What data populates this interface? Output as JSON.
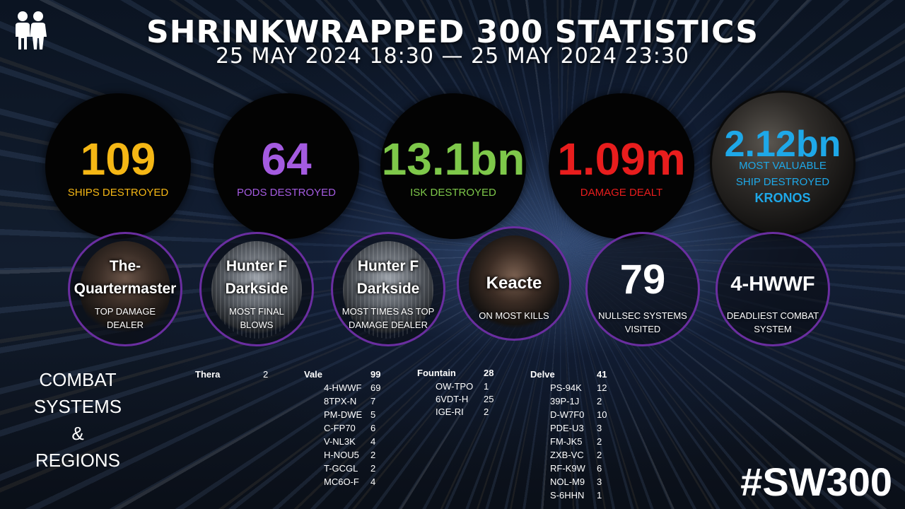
{
  "header": {
    "title": "SHRINKWRAPPED 300 STATISTICS",
    "subtitle": "25 MAY 2024 18:30 — 25 MAY 2024 23:30"
  },
  "stats": [
    {
      "value": "109",
      "label": "SHIPS DESTROYED",
      "color": "#f5b715"
    },
    {
      "value": "64",
      "label": "PODS DESTROYED",
      "color": "#a45be0"
    },
    {
      "value": "13.1bn",
      "label": "ISK DESTROYED",
      "color": "#7ec84a"
    },
    {
      "value": "1.09m",
      "label": "DAMAGE DEALT",
      "color": "#e81d1d"
    }
  ],
  "most_valuable": {
    "value": "2.12bn",
    "label_line1": "MOST VALUABLE",
    "label_line2": "SHIP DESTROYED",
    "ship": "KRONOS",
    "color": "#1ea8e8"
  },
  "awards": [
    {
      "name_line1": "The-",
      "name_line2": "Quartermaster",
      "label_line1": "TOP DAMAGE",
      "label_line2": "DEALER"
    },
    {
      "name_line1": "Hunter F",
      "name_line2": "Darkside",
      "label_line1": "MOST FINAL",
      "label_line2": "BLOWS"
    },
    {
      "name_line1": "Hunter F",
      "name_line2": "Darkside",
      "label_line1": "MOST TIMES AS TOP",
      "label_line2": "DAMAGE DEALER"
    },
    {
      "name_line1": "Keacte",
      "label_line1": "ON MOST KILLS"
    }
  ],
  "nullsec": {
    "value": "79",
    "label_line1": "NULLSEC SYSTEMS",
    "label_line2": "VISITED"
  },
  "deadliest": {
    "value": "4-HWWF",
    "label_line1": "DEADLIEST COMBAT",
    "label_line2": "SYSTEM"
  },
  "section": {
    "line1": "COMBAT",
    "line2": "SYSTEMS &",
    "line3": "REGIONS"
  },
  "regions": [
    {
      "name": "Thera",
      "count": "2",
      "systems": []
    },
    {
      "name": "Vale",
      "count": "99",
      "systems": [
        {
          "name": "4-HWWF",
          "count": "69"
        },
        {
          "name": "8TPX-N",
          "count": "7"
        },
        {
          "name": "PM-DWE",
          "count": "5"
        },
        {
          "name": "C-FP70",
          "count": "6"
        },
        {
          "name": "V-NL3K",
          "count": "4"
        },
        {
          "name": "H-NOU5",
          "count": "2"
        },
        {
          "name": "T-GCGL",
          "count": "2"
        },
        {
          "name": "MC6O-F",
          "count": "4"
        }
      ]
    },
    {
      "name": "Fountain",
      "count": "28",
      "systems": [
        {
          "name": "OW-TPO",
          "count": "1"
        },
        {
          "name": "6VDT-H",
          "count": "25"
        },
        {
          "name": "IGE-RI",
          "count": "2"
        }
      ]
    },
    {
      "name": "Delve",
      "count": "41",
      "systems": [
        {
          "name": "PS-94K",
          "count": "12"
        },
        {
          "name": "39P-1J",
          "count": "2"
        },
        {
          "name": "D-W7F0",
          "count": "10"
        },
        {
          "name": "PDE-U3",
          "count": "3"
        },
        {
          "name": "FM-JK5",
          "count": "2"
        },
        {
          "name": "ZXB-VC",
          "count": "2"
        },
        {
          "name": "RF-K9W",
          "count": "6"
        },
        {
          "name": "NOL-M9",
          "count": "3"
        },
        {
          "name": "S-6HHN",
          "count": "1"
        }
      ]
    }
  ],
  "hashtag": "#SW300",
  "icons": {
    "logo": "two-people-icon"
  }
}
